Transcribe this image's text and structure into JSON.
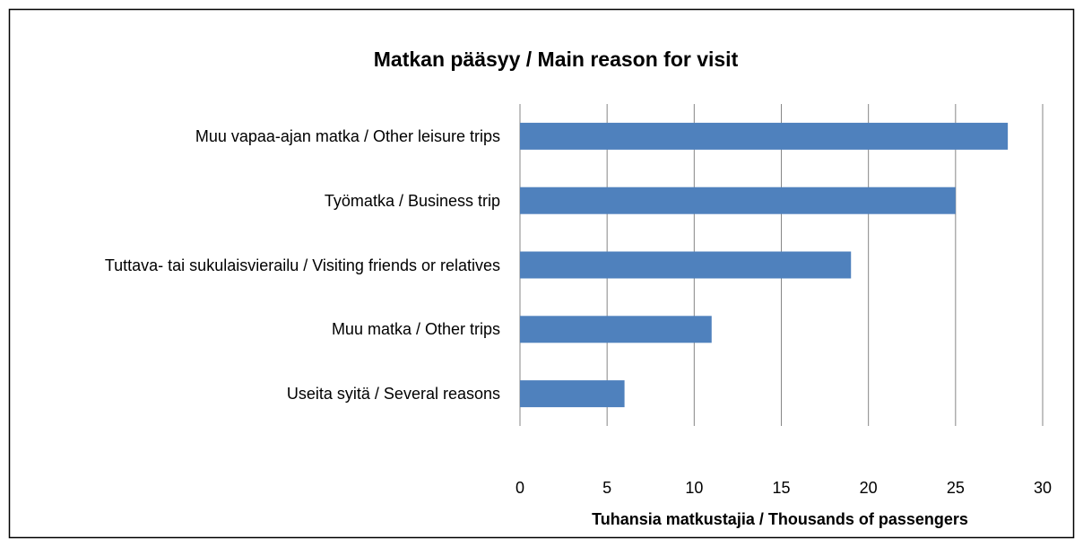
{
  "chart_data": {
    "type": "bar",
    "orientation": "horizontal",
    "title": "Matkan pääsyy / Main reason for visit",
    "x_label": "Tuhansia matkustajia / Thousands of passengers",
    "categories": [
      "Muu vapaa-ajan matka / Other leisure trips",
      "Työmatka / Business trip",
      "Tuttava- tai sukulaisvierailu / Visiting friends or relatives",
      "Muu matka / Other trips",
      "Useita syitä / Several reasons"
    ],
    "values": [
      28,
      25,
      19,
      11,
      6
    ],
    "color": "#4f81bd",
    "xlim": [
      0,
      30
    ],
    "xticks": [
      0,
      5,
      10,
      15,
      20,
      25,
      30
    ],
    "grid": true
  }
}
